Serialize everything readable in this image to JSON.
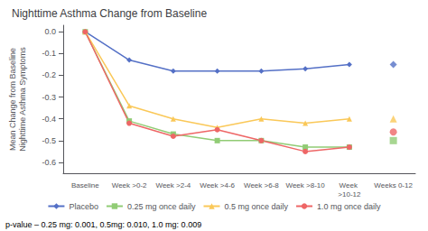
{
  "chart_data": {
    "type": "line",
    "title": "Nighttime Asthma Change from Baseline",
    "y_label": "Mean Change from Baseline\nNighttime Asthma Symptoms",
    "categories": [
      "Baseline",
      "Week >0-2",
      "Week >2-4",
      "Week >4-6",
      "Week >6-8",
      "Week >8-10",
      "Week >10-12",
      "Weeks 0-12"
    ],
    "series": [
      {
        "name": "Placebo",
        "marker": "diamond",
        "values": [
          0.0,
          -0.13,
          -0.18,
          -0.18,
          -0.18,
          -0.17,
          -0.15,
          null
        ],
        "isolated": -0.15
      },
      {
        "name": "0.25 mg once daily",
        "marker": "square",
        "values": [
          0.0,
          -0.41,
          -0.47,
          -0.5,
          -0.5,
          -0.53,
          -0.53,
          null
        ],
        "isolated": -0.5
      },
      {
        "name": "0.5 mg once daily",
        "marker": "triangle",
        "values": [
          0.0,
          -0.34,
          -0.4,
          -0.44,
          -0.4,
          -0.42,
          -0.4,
          null
        ],
        "isolated": -0.4
      },
      {
        "name": "1.0 mg once daily",
        "marker": "circle",
        "values": [
          0.0,
          -0.42,
          -0.48,
          -0.45,
          -0.5,
          -0.55,
          -0.53,
          null
        ],
        "isolated": -0.46
      }
    ],
    "ylim": [
      -0.65,
      0.03
    ],
    "yticks": [
      {
        "value": 0.0,
        "label": "0.0"
      },
      -0.1,
      -0.2,
      -0.3,
      -0.4,
      -0.5,
      -0.6
    ],
    "grid": false,
    "legend": "bottom",
    "annotations": [
      "p-value – 0.25 mg: 0.001, 0.5mg: 0.010, 1.0 mg: 0.009"
    ]
  }
}
